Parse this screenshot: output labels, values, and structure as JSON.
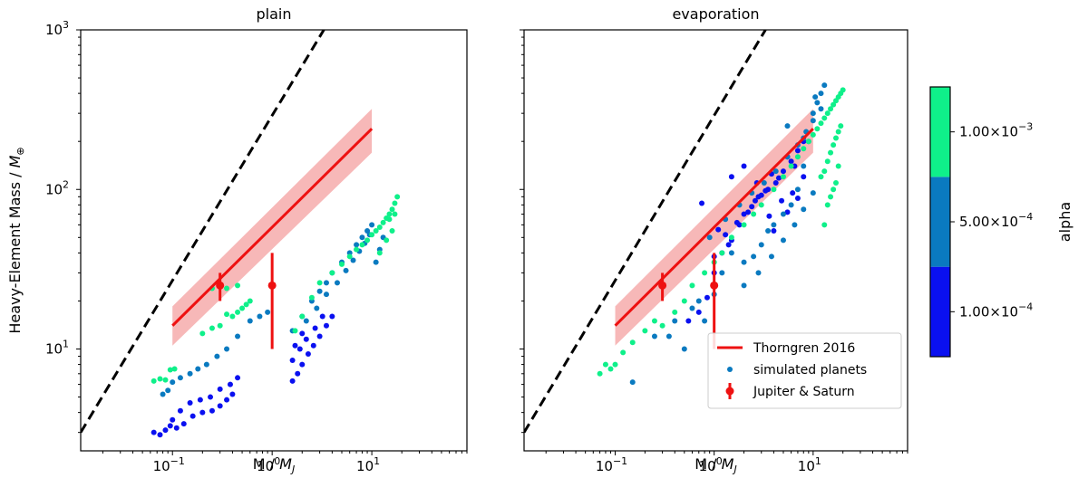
{
  "chart_data": [
    {
      "type": "scatter",
      "title": "plain",
      "xlabel": "M / M_J",
      "ylabel": "Heavy-Element Mass / M_⊕",
      "xscale": "log",
      "yscale": "log",
      "xlim": [
        0.012,
        90
      ],
      "ylim": [
        2.3,
        1000
      ],
      "xticks": [
        {
          "value": 0.1,
          "base": "10",
          "exp": "−1"
        },
        {
          "value": 1,
          "base": "10",
          "exp": "0"
        },
        {
          "value": 10,
          "base": "10",
          "exp": "1"
        }
      ],
      "yticks": [
        {
          "value": 10,
          "base": "10",
          "exp": "1"
        },
        {
          "value": 100,
          "base": "10",
          "exp": "2"
        },
        {
          "value": 1000,
          "base": "10",
          "exp": "3"
        }
      ],
      "series": [
        {
          "name": "1:1 line",
          "kind": "dashed-line",
          "x": [
            0.012,
            3.3
          ],
          "y": [
            3.0,
            1000
          ]
        },
        {
          "name": "Thorngren 2016",
          "kind": "fit-line",
          "x": [
            0.1,
            10
          ],
          "y": [
            14,
            240
          ],
          "band_lower": [
            10.5,
            170
          ],
          "band_upper": [
            18.5,
            320
          ]
        },
        {
          "name": "Jupiter & Saturn",
          "kind": "errorbar",
          "points": [
            {
              "x": 0.3,
              "y": 25,
              "ylo": 20,
              "yhi": 30
            },
            {
              "x": 1.0,
              "y": 25,
              "ylo": 10,
              "yhi": 40
            }
          ]
        },
        {
          "name": "simulated planets (alpha 1.00e-4)",
          "alpha": 0.0001,
          "x": [
            0.065,
            0.075,
            0.085,
            0.095,
            0.11,
            0.13,
            0.16,
            0.2,
            0.25,
            0.3,
            0.35,
            0.4,
            0.1,
            0.12,
            0.15,
            0.19,
            0.24,
            0.3,
            0.38,
            0.45,
            1.6,
            1.8,
            2.0,
            2.3,
            2.6,
            3.0,
            3.5,
            4.0,
            1.6,
            1.9,
            2.2,
            2.7,
            3.2,
            1.7,
            2.0
          ],
          "y": [
            3.0,
            2.9,
            3.1,
            3.3,
            3.2,
            3.4,
            3.8,
            4.0,
            4.1,
            4.4,
            4.8,
            5.2,
            3.6,
            4.1,
            4.6,
            4.8,
            5.0,
            5.6,
            6.0,
            6.6,
            6.3,
            7.0,
            8.0,
            9.3,
            10.5,
            12.0,
            14.0,
            16.0,
            8.5,
            10.0,
            11.5,
            13.5,
            16.0,
            10.5,
            12.5
          ]
        },
        {
          "name": "simulated planets (alpha 5.00e-4)",
          "alpha": 0.0005,
          "x": [
            0.08,
            0.09,
            0.1,
            0.12,
            0.15,
            0.18,
            0.22,
            0.28,
            0.35,
            0.45,
            0.6,
            0.75,
            0.9,
            1.6,
            2.0,
            2.5,
            3.0,
            3.5,
            4.0,
            5.0,
            6.0,
            7.0,
            8.0,
            9.0,
            10.0,
            2.2,
            2.8,
            3.5,
            4.5,
            5.5,
            6.5,
            7.5,
            8.5,
            9.5,
            11.0,
            12.0,
            13.0
          ],
          "y": [
            5.2,
            5.5,
            6.2,
            6.6,
            7.0,
            7.5,
            8.0,
            9.0,
            10.0,
            12.0,
            15.0,
            16.0,
            17.0,
            13.0,
            16.0,
            20.0,
            23.0,
            26.0,
            30.0,
            35.0,
            40.0,
            45.0,
            50.0,
            55.0,
            60.0,
            15.0,
            18.0,
            22.0,
            26.0,
            31.0,
            36.0,
            41.0,
            46.0,
            52.0,
            35.0,
            42.0,
            50.0
          ]
        },
        {
          "name": "simulated planets (alpha 1.00e-3)",
          "alpha": 0.001,
          "x": [
            0.065,
            0.075,
            0.085,
            0.095,
            0.105,
            0.2,
            0.25,
            0.3,
            0.35,
            0.4,
            0.45,
            0.5,
            0.55,
            0.6,
            0.25,
            0.35,
            0.45,
            1.7,
            2.0,
            2.5,
            3.0,
            4.0,
            5.0,
            6.0,
            7.0,
            8.0,
            9.0,
            10.0,
            11.0,
            12.0,
            13.0,
            14.0,
            15.0,
            16.0,
            17.0,
            18.0,
            12.0,
            14.0,
            16.0,
            15.0,
            17.0
          ],
          "y": [
            6.3,
            6.5,
            6.4,
            7.4,
            7.5,
            12.5,
            13.5,
            14.0,
            16.5,
            16.0,
            17.0,
            18.0,
            19.0,
            20.0,
            24.0,
            24.0,
            25.0,
            13.0,
            16.0,
            21.0,
            26.0,
            30.0,
            34.0,
            38.0,
            42.0,
            45.0,
            48.0,
            52.0,
            55.0,
            58.0,
            62.0,
            66.0,
            70.0,
            75.0,
            82.0,
            90.0,
            40.0,
            48.0,
            55.0,
            65.0,
            70.0
          ]
        }
      ]
    },
    {
      "type": "scatter",
      "title": "evaporation",
      "xlabel": "M / M_J",
      "ylabel": "",
      "xscale": "log",
      "yscale": "log",
      "xlim": [
        0.012,
        90
      ],
      "ylim": [
        2.3,
        1000
      ],
      "xticks": [
        {
          "value": 0.1,
          "base": "10",
          "exp": "−1"
        },
        {
          "value": 1,
          "base": "10",
          "exp": "0"
        },
        {
          "value": 10,
          "base": "10",
          "exp": "1"
        }
      ],
      "yticks": [],
      "legend": {
        "placement": "lower-right",
        "entries": [
          "Thorngren 2016",
          "simulated planets",
          "Jupiter & Saturn"
        ]
      },
      "series": [
        {
          "name": "1:1 line",
          "kind": "dashed-line",
          "x": [
            0.012,
            3.3
          ],
          "y": [
            3.0,
            1000
          ]
        },
        {
          "name": "Thorngren 2016",
          "kind": "fit-line",
          "x": [
            0.1,
            10
          ],
          "y": [
            14,
            240
          ],
          "band_lower": [
            10.5,
            170
          ],
          "band_upper": [
            18.5,
            320
          ]
        },
        {
          "name": "Jupiter & Saturn",
          "kind": "errorbar",
          "points": [
            {
              "x": 0.3,
              "y": 25,
              "ylo": 20,
              "yhi": 30
            },
            {
              "x": 1.0,
              "y": 25,
              "ylo": 10,
              "yhi": 40
            }
          ]
        },
        {
          "name": "simulated planets (alpha 1.00e-4)",
          "alpha": 0.0001,
          "x": [
            0.55,
            0.7,
            0.85,
            1.0,
            1.2,
            1.5,
            1.8,
            2.2,
            2.6,
            3.0,
            3.5,
            4.2,
            5.0,
            6.0,
            7.0,
            8.0,
            0.75,
            1.1,
            1.4,
            2.0,
            2.8,
            3.8,
            5.5,
            1.0,
            1.3,
            1.7,
            2.4,
            3.3,
            4.5,
            6.5,
            1.5,
            2.0,
            2.7,
            3.6,
            4.8,
            6.2,
            8.0,
            4.0,
            5.5,
            7.0
          ],
          "y": [
            15.0,
            17.0,
            21.0,
            30.0,
            40.0,
            48.0,
            60.0,
            72.0,
            85.0,
            92.0,
            100.0,
            110.0,
            130.0,
            150.0,
            175.0,
            200.0,
            82.0,
            56.0,
            45.0,
            70.0,
            90.0,
            125.0,
            160.0,
            38.0,
            52.0,
            62.0,
            78.0,
            98.0,
            118.0,
            140.0,
            120.0,
            140.0,
            110.0,
            68.0,
            85.0,
            95.0,
            120.0,
            55.0,
            72.0,
            88.0
          ]
        },
        {
          "name": "simulated planets (alpha 5.00e-4)",
          "alpha": 0.0005,
          "x": [
            0.15,
            0.25,
            0.4,
            0.6,
            0.8,
            1.0,
            1.2,
            1.5,
            2.0,
            2.5,
            3.0,
            3.5,
            4.0,
            5.0,
            6.0,
            7.0,
            8.0,
            9.0,
            10.0,
            11.0,
            12.0,
            13.0,
            0.9,
            1.3,
            1.8,
            2.4,
            3.2,
            4.2,
            5.5,
            7.0,
            8.5,
            10.0,
            12.0,
            2.0,
            2.8,
            3.8,
            5.0,
            6.5,
            8.0,
            10.0,
            0.35,
            0.5,
            0.7,
            5.5,
            8.0,
            10.5
          ],
          "y": [
            6.2,
            12.0,
            15.0,
            18.0,
            15.0,
            22.0,
            30.0,
            40.0,
            35.0,
            38.0,
            45.0,
            55.0,
            60.0,
            70.0,
            80.0,
            100.0,
            140.0,
            200.0,
            300.0,
            350.0,
            400.0,
            450.0,
            50.0,
            65.0,
            80.0,
            95.0,
            110.0,
            130.0,
            160.0,
            190.0,
            230.0,
            270.0,
            320.0,
            25.0,
            30.0,
            38.0,
            48.0,
            60.0,
            75.0,
            95.0,
            12.0,
            10.0,
            20.0,
            250.0,
            210.0,
            380.0
          ]
        },
        {
          "name": "simulated planets (alpha 1.00e-3)",
          "alpha": 0.001,
          "x": [
            0.07,
            0.08,
            0.09,
            0.1,
            0.12,
            0.15,
            0.2,
            0.25,
            0.3,
            0.4,
            0.5,
            0.6,
            0.8,
            1.0,
            1.2,
            1.5,
            2.0,
            2.5,
            3.0,
            4.0,
            5.0,
            6.0,
            7.0,
            8.0,
            9.0,
            10.0,
            11.0,
            12.0,
            13.0,
            14.0,
            15.0,
            16.0,
            17.0,
            18.0,
            19.0,
            20.0,
            12.0,
            13.0,
            14.0,
            15.0,
            16.0,
            17.0,
            18.0,
            14.0,
            16.0,
            18.0,
            13.0,
            15.0,
            17.0,
            19.0
          ],
          "y": [
            7.0,
            8.0,
            7.5,
            8.0,
            9.5,
            11.0,
            13.0,
            15.0,
            14.0,
            17.0,
            20.0,
            25.0,
            30.0,
            35.0,
            40.0,
            50.0,
            60.0,
            70.0,
            80.0,
            100.0,
            120.0,
            140.0,
            160.0,
            180.0,
            200.0,
            220.0,
            240.0,
            260.0,
            280.0,
            300.0,
            320.0,
            340.0,
            360.0,
            380.0,
            400.0,
            420.0,
            120.0,
            130.0,
            150.0,
            170.0,
            190.0,
            210.0,
            230.0,
            80.0,
            100.0,
            140.0,
            60.0,
            90.0,
            110.0,
            250.0
          ]
        }
      ]
    }
  ],
  "colorbar": {
    "label": "alpha",
    "segments": [
      {
        "value": 0.0001,
        "color": "#0a10f0",
        "label_base": "1.00×10",
        "label_exp": "−4"
      },
      {
        "value": 0.0005,
        "color": "#0a7ac0",
        "label_base": "5.00×10",
        "label_exp": "−4"
      },
      {
        "value": 0.001,
        "color": "#0ff08a",
        "label_base": "1.00×10",
        "label_exp": "−3"
      }
    ]
  },
  "colors": {
    "fit": "#ee1111",
    "band": "#f4a0a0",
    "dashed": "#000000",
    "legend_scatter": "#0a7ac0"
  }
}
